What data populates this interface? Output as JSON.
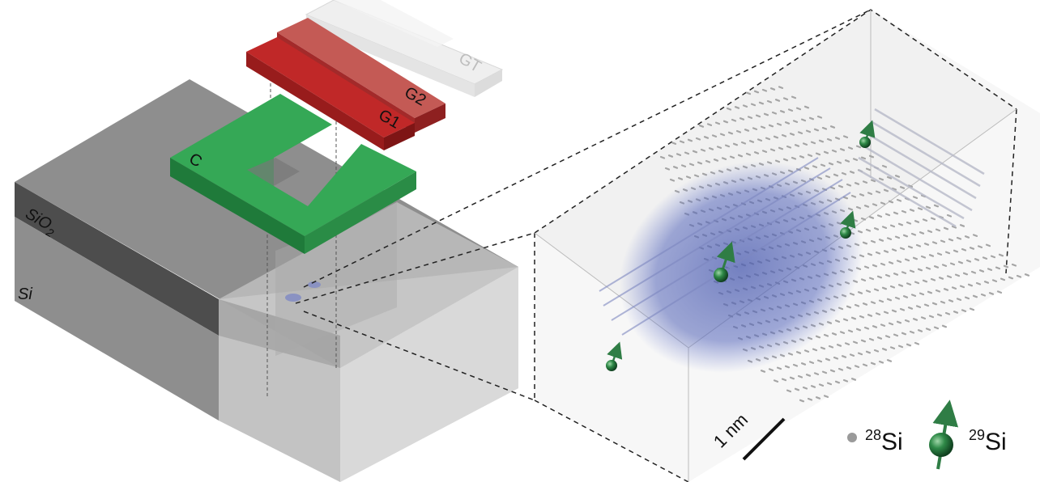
{
  "labels": {
    "gate_gt": "GT",
    "gate_g2": "G2",
    "gate_g1": "G1",
    "gate_c": "C",
    "oxide_base": "SiO",
    "oxide_sub": "2",
    "silicon": "Si",
    "scale_bar": "1 nm"
  },
  "legend": {
    "si28_mass": "28",
    "si28_symbol": "Si",
    "si29_mass": "29",
    "si29_symbol": "Si"
  },
  "colors": {
    "gate_gt": "#e2e2e2",
    "gate_g2": "#a82a2a",
    "gate_g1": "#b52424",
    "gate_c": "#2e9a4d",
    "oxide": "#5a5a5a",
    "silicon": "#bdbdbd",
    "wavefunction": "#4a5bb0",
    "atom_si28": "#9a9a9a",
    "atom_si29": "#2f7d45"
  }
}
